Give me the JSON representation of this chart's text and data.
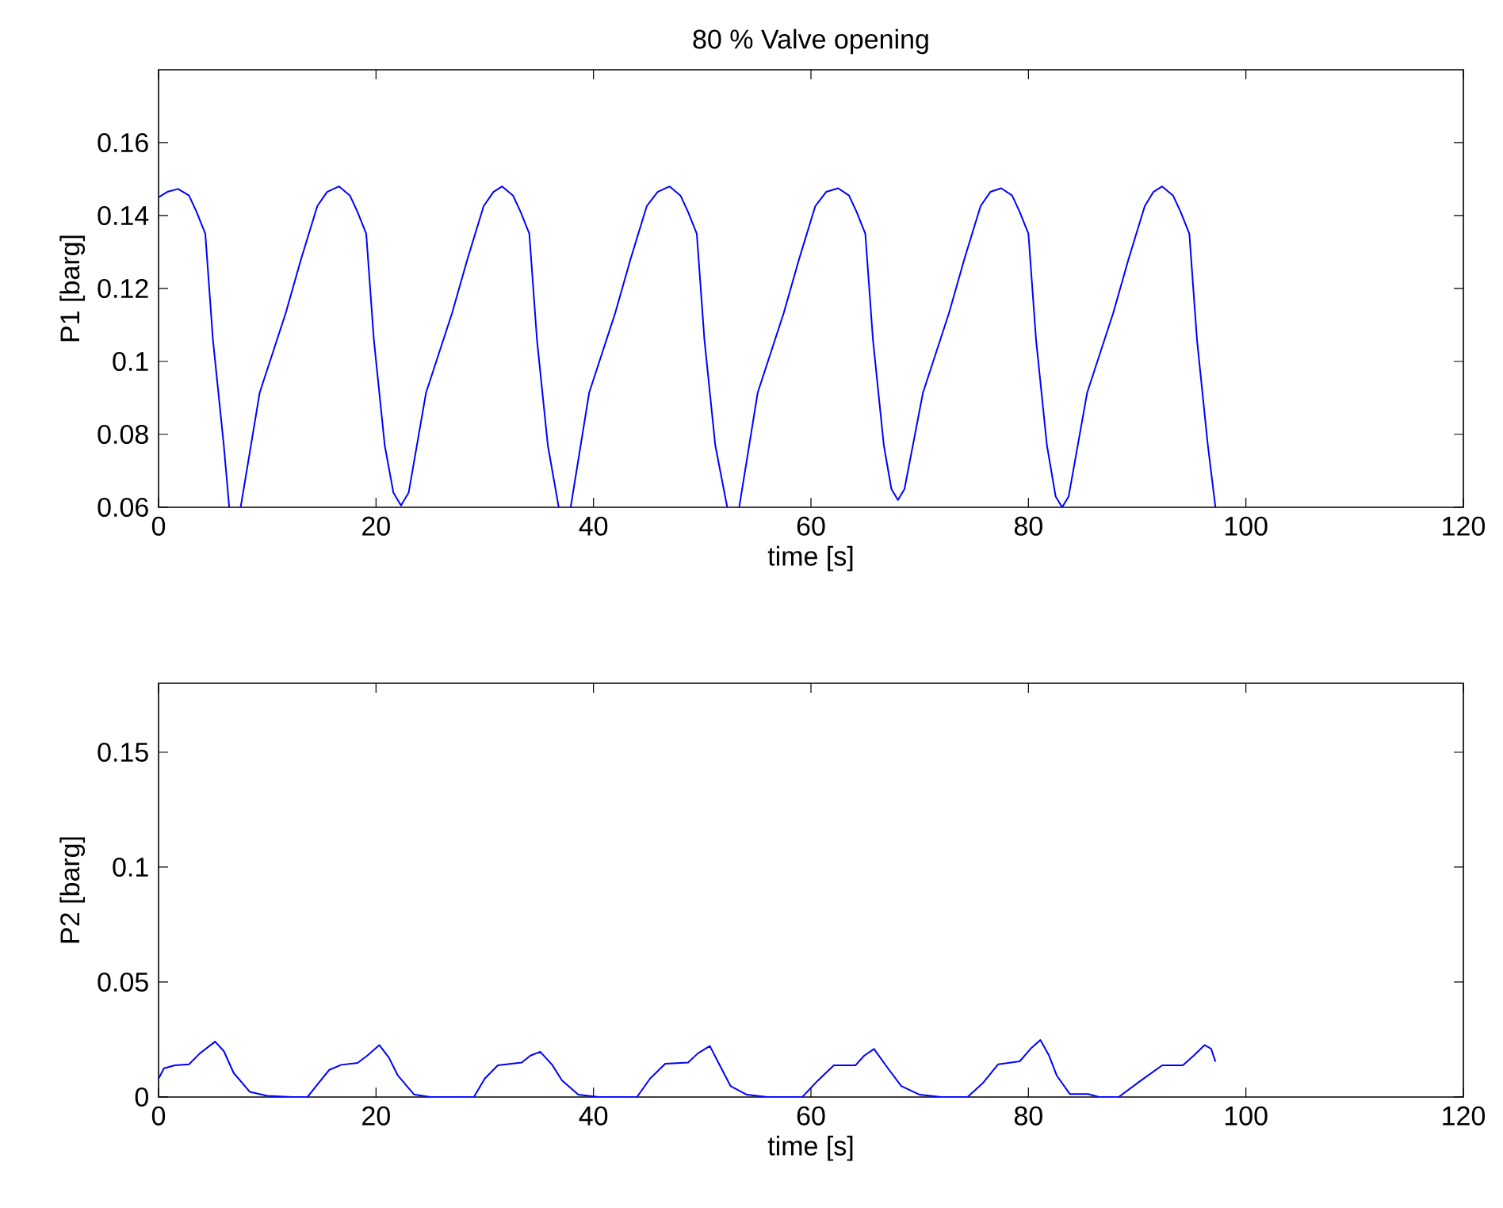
{
  "chart_data": [
    {
      "type": "line",
      "title": "80  % Valve opening",
      "xlabel": "time [s]",
      "ylabel": "P1 [barg]",
      "marker": "none",
      "line_style": "solid",
      "xlim": [
        0,
        120
      ],
      "ylim": [
        0.06,
        0.18
      ],
      "xticks": [
        0,
        20,
        40,
        60,
        80,
        100,
        120
      ],
      "yticks": [
        0.06,
        0.08,
        0.1,
        0.12,
        0.14,
        0.16
      ],
      "x": [
        0,
        0.8,
        1.8,
        2.8,
        3.5,
        4.3,
        5.0,
        6.0,
        6.5,
        7.0,
        7.55,
        9.3,
        11.7,
        13.1,
        14.6,
        15.5,
        16.6,
        17.6,
        18.3,
        19.1,
        19.8,
        20.8,
        21.6,
        22.3,
        23.0,
        24.6,
        27.0,
        28.4,
        29.9,
        30.8,
        31.6,
        32.6,
        33.3,
        34.1,
        34.8,
        35.8,
        36.8,
        37.3,
        37.9,
        39.6,
        42.0,
        43.4,
        44.9,
        45.9,
        47.0,
        48.0,
        48.7,
        49.5,
        50.2,
        51.2,
        52.3,
        52.8,
        53.4,
        55.1,
        57.5,
        58.9,
        60.4,
        61.4,
        62.5,
        63.5,
        64.2,
        65.0,
        65.7,
        66.7,
        67.4,
        68.0,
        68.6,
        70.3,
        72.7,
        74.1,
        75.6,
        76.5,
        77.5,
        78.5,
        79.2,
        80.0,
        80.7,
        81.7,
        82.5,
        83.1,
        83.7,
        85.4,
        87.8,
        89.2,
        90.7,
        91.5,
        92.3,
        93.3,
        94.0,
        94.8,
        95.5,
        96.5,
        97.2
      ],
      "series": [
        {
          "color": "#0000ff",
          "values": [
            0.145,
            0.1465,
            0.1473,
            0.1455,
            0.141,
            0.135,
            0.106,
            0.077,
            0.06,
            null,
            0.06,
            0.0914,
            0.1133,
            0.128,
            0.1426,
            0.1465,
            0.148,
            0.1455,
            0.141,
            0.135,
            0.106,
            0.077,
            0.064,
            0.0605,
            0.064,
            0.0914,
            0.1133,
            0.128,
            0.1426,
            0.1465,
            0.148,
            0.1455,
            0.141,
            0.135,
            0.106,
            0.077,
            0.06,
            null,
            0.06,
            0.0914,
            0.1133,
            0.128,
            0.1426,
            0.1465,
            0.148,
            0.1455,
            0.141,
            0.135,
            0.106,
            0.077,
            0.06,
            null,
            0.06,
            0.0914,
            0.1133,
            0.128,
            0.1426,
            0.1465,
            0.1475,
            0.1455,
            0.141,
            0.135,
            0.106,
            0.077,
            0.065,
            0.062,
            0.065,
            0.0914,
            0.1133,
            0.128,
            0.1426,
            0.1465,
            0.1475,
            0.1455,
            0.141,
            0.135,
            0.106,
            0.077,
            0.063,
            0.06,
            0.063,
            0.0914,
            0.1133,
            0.128,
            0.1426,
            0.1465,
            0.148,
            0.1455,
            0.141,
            0.135,
            0.106,
            0.077,
            0.06
          ]
        }
      ]
    },
    {
      "type": "line",
      "xlabel": "time [s]",
      "ylabel": "P2 [barg]",
      "marker": "none",
      "line_style": "solid",
      "xlim": [
        0,
        120
      ],
      "ylim": [
        0,
        0.18
      ],
      "xticks": [
        0,
        20,
        40,
        60,
        80,
        100,
        120
      ],
      "yticks": [
        0,
        0.05,
        0.1,
        0.15
      ],
      "x": [
        0,
        0.5,
        1.5,
        2.8,
        3.8,
        5.2,
        6.0,
        6.9,
        8.4,
        10.0,
        12.3,
        13.7,
        14.7,
        15.7,
        16.8,
        18.3,
        19.2,
        20.3,
        21.2,
        22.0,
        23.5,
        25.0,
        28.4,
        29.0,
        30.0,
        31.2,
        33.4,
        34.2,
        35.1,
        36.2,
        37.1,
        38.6,
        40.5,
        43.7,
        44.0,
        45.2,
        46.6,
        48.7,
        49.6,
        50.7,
        51.7,
        52.6,
        54.1,
        56.0,
        59.2,
        60.6,
        62.1,
        64.1,
        64.9,
        65.8,
        67.0,
        68.3,
        70.0,
        72.0,
        74.4,
        75.8,
        77.2,
        79.2,
        80.2,
        81.1,
        81.9,
        82.6,
        83.8,
        85.5,
        86.5,
        88.3,
        90.3,
        92.3,
        94.2,
        95.2,
        96.2,
        96.8,
        97.2
      ],
      "series": [
        {
          "color": "#0000ff",
          "values": [
            0.008,
            0.0125,
            0.0138,
            0.0142,
            0.019,
            0.0241,
            0.02,
            0.0105,
            0.0022,
            0.0005,
            0,
            0,
            0.006,
            0.0118,
            0.014,
            0.0148,
            0.018,
            0.0226,
            0.017,
            0.0094,
            0.0011,
            0,
            0,
            0,
            0.008,
            0.0138,
            0.015,
            0.018,
            0.0197,
            0.014,
            0.0072,
            0.001,
            0,
            0,
            0,
            0.008,
            0.0145,
            0.015,
            0.019,
            0.0222,
            0.013,
            0.0048,
            0.001,
            0,
            0,
            0.007,
            0.0138,
            0.0138,
            0.018,
            0.0209,
            0.013,
            0.0048,
            0.001,
            0,
            0,
            0.006,
            0.0142,
            0.0155,
            0.021,
            0.0248,
            0.018,
            0.0094,
            0.0013,
            0.0013,
            0,
            0,
            0.007,
            0.0138,
            0.0138,
            0.018,
            0.0226,
            0.021,
            0.0154
          ]
        }
      ]
    }
  ]
}
